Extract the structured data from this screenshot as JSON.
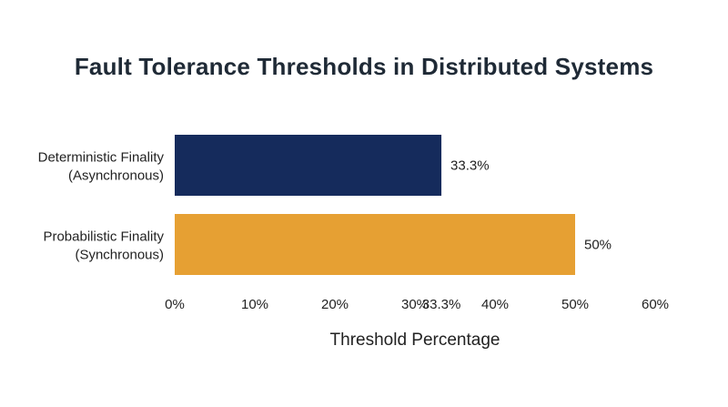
{
  "chart_data": {
    "type": "bar",
    "orientation": "horizontal",
    "title": "Fault Tolerance Thresholds in Distributed Systems",
    "xlabel": "Threshold Percentage",
    "ylabel": "",
    "categories": [
      [
        "Deterministic Finality",
        "(Asynchronous)"
      ],
      [
        "Probabilistic Finality",
        "(Synchronous)"
      ]
    ],
    "values": [
      33.3,
      50
    ],
    "value_labels": [
      "33.3%",
      "50%"
    ],
    "bar_colors": [
      "#152b5c",
      "#e6a033"
    ],
    "xlim": [
      0,
      60
    ],
    "xticks": [
      {
        "value": 0,
        "label": "0%"
      },
      {
        "value": 10,
        "label": "10%"
      },
      {
        "value": 20,
        "label": "20%"
      },
      {
        "value": 30,
        "label": "30%"
      },
      {
        "value": 33.3,
        "label": "33.3%"
      },
      {
        "value": 40,
        "label": "40%"
      },
      {
        "value": 50,
        "label": "50%"
      },
      {
        "value": 60,
        "label": "60%"
      }
    ],
    "grid": false,
    "legend": "none"
  }
}
